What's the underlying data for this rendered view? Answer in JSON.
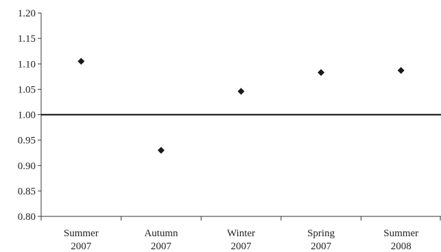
{
  "chart_data": {
    "type": "scatter",
    "title": "",
    "xlabel": "",
    "ylabel": "",
    "categories": [
      [
        "Summer",
        "2007"
      ],
      [
        "Autumn",
        "2007"
      ],
      [
        "Winter",
        "2007"
      ],
      [
        "Spring",
        "2007"
      ],
      [
        "Summer",
        "2008"
      ]
    ],
    "values": [
      1.105,
      0.93,
      1.046,
      1.083,
      1.087
    ],
    "ylim": [
      0.8,
      1.2
    ],
    "yticks": [
      "0.80",
      "0.85",
      "0.90",
      "0.95",
      "1.00",
      "1.05",
      "1.10",
      "1.15",
      "1.20"
    ],
    "reference_line": 1.0,
    "marker": "diamond",
    "grid": false,
    "legend": "none",
    "colors": {
      "marker": "#1a1a1a",
      "axis": "#333333",
      "reference_line": "#000000"
    }
  }
}
